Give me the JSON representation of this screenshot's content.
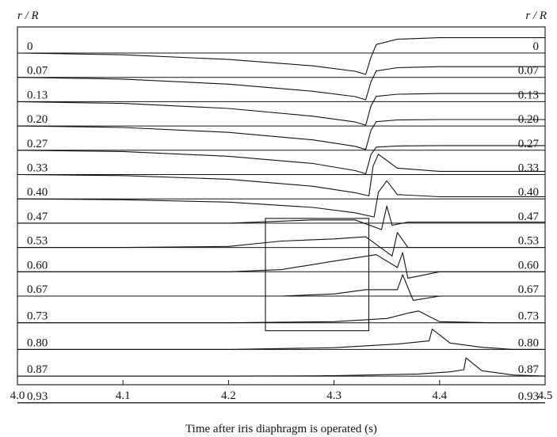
{
  "chart_data": {
    "type": "line",
    "title": "",
    "xlabel": "Time after iris diaphragm is operated (s)",
    "ylabel_left": "r / R",
    "ylabel_right": "r / R",
    "xlim": [
      4.0,
      4.5
    ],
    "x_ticks": [
      "4.0",
      "4.1",
      "4.2",
      "4.3",
      "4.4",
      "4.5"
    ],
    "grid": false,
    "legend": "none",
    "traces": [
      {
        "label": "0",
        "x": [
          4.0,
          4.1,
          4.2,
          4.28,
          4.32,
          4.33,
          4.335,
          4.34,
          4.36,
          4.4,
          4.5
        ],
        "y": [
          0.0,
          -0.08,
          -0.3,
          -0.6,
          -0.85,
          -1.0,
          -0.2,
          0.4,
          0.65,
          0.72,
          0.72
        ]
      },
      {
        "label": "0.07",
        "x": [
          4.0,
          4.1,
          4.2,
          4.28,
          4.32,
          4.33,
          4.335,
          4.34,
          4.36,
          4.4,
          4.5
        ],
        "y": [
          0.0,
          -0.08,
          -0.32,
          -0.65,
          -0.9,
          -1.05,
          -0.2,
          0.3,
          0.45,
          0.5,
          0.5
        ]
      },
      {
        "label": "0.13",
        "x": [
          4.0,
          4.1,
          4.2,
          4.28,
          4.32,
          4.33,
          4.335,
          4.34,
          4.36,
          4.4,
          4.5
        ],
        "y": [
          0.0,
          -0.08,
          -0.32,
          -0.68,
          -0.95,
          -1.1,
          -0.2,
          0.25,
          0.35,
          0.38,
          0.38
        ]
      },
      {
        "label": "0.20",
        "x": [
          4.0,
          4.1,
          4.2,
          4.28,
          4.32,
          4.33,
          4.335,
          4.34,
          4.36,
          4.4,
          4.5
        ],
        "y": [
          0.0,
          -0.07,
          -0.3,
          -0.65,
          -0.95,
          -1.1,
          -0.2,
          0.2,
          0.28,
          0.3,
          0.3
        ]
      },
      {
        "label": "0.27",
        "x": [
          4.0,
          4.1,
          4.2,
          4.28,
          4.32,
          4.33,
          4.335,
          4.34,
          4.36,
          4.4,
          4.5
        ],
        "y": [
          0.0,
          -0.06,
          -0.28,
          -0.62,
          -0.95,
          -1.1,
          -0.2,
          0.15,
          0.2,
          0.22,
          0.22
        ]
      },
      {
        "label": "0.33",
        "x": [
          4.0,
          4.1,
          4.2,
          4.28,
          4.32,
          4.333,
          4.337,
          4.342,
          4.36,
          4.4,
          4.5
        ],
        "y": [
          0.0,
          -0.05,
          -0.22,
          -0.55,
          -0.85,
          -1.0,
          0.4,
          0.95,
          0.3,
          0.15,
          0.15
        ]
      },
      {
        "label": "0.40",
        "x": [
          4.0,
          4.1,
          4.2,
          4.28,
          4.32,
          4.338,
          4.342,
          4.35,
          4.36,
          4.4,
          4.5
        ],
        "y": [
          0.0,
          -0.04,
          -0.15,
          -0.4,
          -0.65,
          -0.85,
          0.3,
          0.85,
          0.2,
          0.1,
          0.1
        ]
      },
      {
        "label": "0.47",
        "x": [
          4.0,
          4.1,
          4.2,
          4.28,
          4.32,
          4.345,
          4.35,
          4.355,
          4.37,
          4.4,
          4.5
        ],
        "y": [
          0.0,
          0.0,
          0.0,
          0.15,
          0.15,
          -0.3,
          0.8,
          -0.1,
          0.05,
          0.05,
          0.05
        ]
      },
      {
        "label": "0.53",
        "x": [
          4.0,
          4.1,
          4.2,
          4.25,
          4.3,
          4.33,
          4.355,
          4.36,
          4.37,
          4.4,
          4.5
        ],
        "y": [
          0.0,
          0.0,
          0.05,
          0.3,
          0.4,
          0.5,
          -0.4,
          0.7,
          0.0,
          0.0,
          0.0
        ]
      },
      {
        "label": "0.60",
        "x": [
          4.0,
          4.1,
          4.2,
          4.25,
          4.3,
          4.34,
          4.36,
          4.365,
          4.37,
          4.4,
          4.5
        ],
        "y": [
          0.0,
          0.0,
          0.0,
          0.1,
          0.5,
          0.8,
          0.2,
          0.9,
          -0.3,
          0.0,
          0.0
        ]
      },
      {
        "label": "0.67",
        "x": [
          4.0,
          4.1,
          4.2,
          4.25,
          4.3,
          4.33,
          4.36,
          4.365,
          4.375,
          4.4,
          4.5
        ],
        "y": [
          0.0,
          0.0,
          0.0,
          0.0,
          0.1,
          0.3,
          0.3,
          1.0,
          -0.2,
          0.0,
          0.0
        ]
      },
      {
        "label": "0.73",
        "x": [
          4.0,
          4.1,
          4.2,
          4.3,
          4.35,
          4.37,
          4.38,
          4.39,
          4.4,
          4.45,
          4.5
        ],
        "y": [
          0.0,
          0.0,
          0.0,
          0.05,
          0.2,
          0.45,
          0.55,
          0.3,
          0.05,
          0.0,
          0.0
        ]
      },
      {
        "label": "0.80",
        "x": [
          4.0,
          4.1,
          4.2,
          4.3,
          4.36,
          4.39,
          4.393,
          4.41,
          4.44,
          4.47,
          4.5
        ],
        "y": [
          0.0,
          0.0,
          0.0,
          0.08,
          0.25,
          0.4,
          0.95,
          0.3,
          0.1,
          0.0,
          0.0
        ]
      },
      {
        "label": "0.87",
        "x": [
          4.0,
          4.1,
          4.2,
          4.3,
          4.38,
          4.41,
          4.423,
          4.425,
          4.44,
          4.47,
          4.5
        ],
        "y": [
          0.0,
          0.0,
          0.0,
          0.02,
          0.1,
          0.2,
          0.3,
          0.85,
          0.25,
          0.05,
          0.0
        ]
      },
      {
        "label": "0.93",
        "x": [
          4.0,
          4.1,
          4.2,
          4.3,
          4.4,
          4.45,
          4.5
        ],
        "y": [
          0.0,
          0.0,
          0.0,
          0.0,
          0.0,
          0.0,
          0.0
        ]
      }
    ],
    "annotation_box": {
      "x0": 4.235,
      "x1": 4.333,
      "row_top": "0.47",
      "row_bottom": "0.73"
    }
  }
}
